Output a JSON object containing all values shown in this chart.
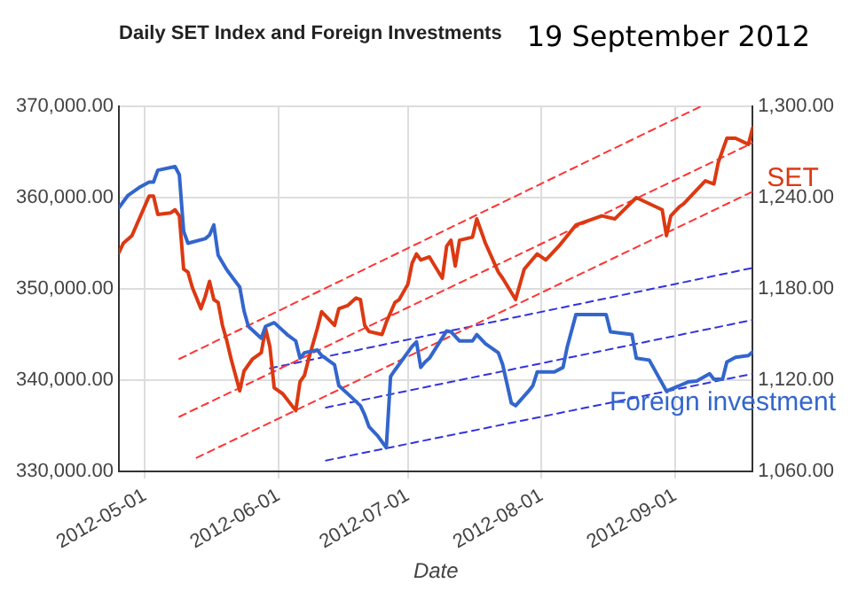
{
  "chart_data": {
    "type": "line",
    "title": "Daily SET Index and Foreign Investments",
    "annotations": [
      "19 September 2012"
    ],
    "xlabel": "Date",
    "xlim": [
      "2012-04-25",
      "2012-09-19"
    ],
    "xticks": [
      {
        "value": "2012-05-01",
        "label": "2012-05-01"
      },
      {
        "value": "2012-06-01",
        "label": "2012-06-01"
      },
      {
        "value": "2012-07-01",
        "label": "2012-07-01"
      },
      {
        "value": "2012-08-01",
        "label": "2012-08-01"
      },
      {
        "value": "2012-09-01",
        "label": "2012-09-01"
      }
    ],
    "ylim": [
      330000,
      370000
    ],
    "yticks": [
      {
        "value": 330000,
        "label": "330,000.00"
      },
      {
        "value": 340000,
        "label": "340,000.00"
      },
      {
        "value": 350000,
        "label": "350,000.00"
      },
      {
        "value": 360000,
        "label": "360,000.00"
      },
      {
        "value": 370000,
        "label": "370,000.00"
      }
    ],
    "y2lim": [
      1060,
      1300
    ],
    "y2ticks": [
      {
        "value": 1060,
        "label": "1,060.00"
      },
      {
        "value": 1120,
        "label": "1,120.00"
      },
      {
        "value": 1180,
        "label": "1,180.00"
      },
      {
        "value": 1240,
        "label": "1,240.00"
      },
      {
        "value": 1300,
        "label": "1,300.00"
      }
    ],
    "grid": true,
    "legend": false,
    "marker": "none",
    "series": [
      {
        "name": "Foreign investment",
        "color": "#3366cc",
        "line_style": "solid",
        "x": [
          "2012-04-25",
          "2012-04-27",
          "2012-04-30",
          "2012-05-02",
          "2012-05-03",
          "2012-05-04",
          "2012-05-08",
          "2012-05-09",
          "2012-05-10",
          "2012-05-11",
          "2012-05-15",
          "2012-05-16",
          "2012-05-17",
          "2012-05-18",
          "2012-05-20",
          "2012-05-23",
          "2012-05-24",
          "2012-05-25",
          "2012-05-28",
          "2012-05-29",
          "2012-05-31",
          "2012-06-03",
          "2012-06-05",
          "2012-06-06",
          "2012-06-07",
          "2012-06-10",
          "2012-06-11",
          "2012-06-14",
          "2012-06-15",
          "2012-06-18",
          "2012-06-20",
          "2012-06-21",
          "2012-06-22",
          "2012-06-24",
          "2012-06-26",
          "2012-06-27",
          "2012-06-28",
          "2012-07-02",
          "2012-07-03",
          "2012-07-04",
          "2012-07-05",
          "2012-07-06",
          "2012-07-10",
          "2012-07-11",
          "2012-07-13",
          "2012-07-16",
          "2012-07-17",
          "2012-07-19",
          "2012-07-22",
          "2012-07-23",
          "2012-07-25",
          "2012-07-26",
          "2012-07-29",
          "2012-07-30",
          "2012-07-31",
          "2012-08-04",
          "2012-08-06",
          "2012-08-07",
          "2012-08-09",
          "2012-08-16",
          "2012-08-17",
          "2012-08-22",
          "2012-08-23",
          "2012-08-26",
          "2012-08-30",
          "2012-09-02",
          "2012-09-04",
          "2012-09-06",
          "2012-09-09",
          "2012-09-10",
          "2012-09-12",
          "2012-09-13",
          "2012-09-15",
          "2012-09-18",
          "2012-09-19"
        ],
        "values": [
          358900,
          360200,
          361200,
          361700,
          361700,
          363000,
          363400,
          362500,
          356300,
          355000,
          355500,
          355900,
          357000,
          353700,
          352100,
          350200,
          347600,
          345900,
          344600,
          345900,
          346300,
          345000,
          344300,
          342400,
          343000,
          343300,
          342700,
          341700,
          339400,
          338100,
          337200,
          336200,
          334900,
          333900,
          332600,
          340400,
          341100,
          343700,
          344200,
          341400,
          342000,
          342400,
          345400,
          345300,
          344300,
          344300,
          345000,
          344000,
          343000,
          341700,
          337500,
          337200,
          338800,
          339400,
          340900,
          340900,
          341400,
          343700,
          347200,
          347200,
          345300,
          345000,
          342400,
          342200,
          338800,
          339400,
          339800,
          339900,
          340700,
          340100,
          340100,
          342000,
          342500,
          342700,
          343100
        ]
      },
      {
        "name": "SET",
        "color": "#dc3912",
        "axis": "y2",
        "line_style": "solid",
        "x": [
          "2012-04-25",
          "2012-04-26",
          "2012-04-28",
          "2012-04-30",
          "2012-05-02",
          "2012-05-03",
          "2012-05-04",
          "2012-05-07",
          "2012-05-08",
          "2012-05-09",
          "2012-05-10",
          "2012-05-11",
          "2012-05-12",
          "2012-05-14",
          "2012-05-15",
          "2012-05-16",
          "2012-05-17",
          "2012-05-18",
          "2012-05-19",
          "2012-05-20",
          "2012-05-21",
          "2012-05-23",
          "2012-05-24",
          "2012-05-26",
          "2012-05-28",
          "2012-05-29",
          "2012-05-30",
          "2012-05-31",
          "2012-06-02",
          "2012-06-05",
          "2012-06-06",
          "2012-06-07",
          "2012-06-08",
          "2012-06-10",
          "2012-06-11",
          "2012-06-12",
          "2012-06-14",
          "2012-06-15",
          "2012-06-17",
          "2012-06-19",
          "2012-06-20",
          "2012-06-21",
          "2012-06-22",
          "2012-06-25",
          "2012-06-26",
          "2012-06-28",
          "2012-06-29",
          "2012-07-01",
          "2012-07-02",
          "2012-07-03",
          "2012-07-04",
          "2012-07-06",
          "2012-07-09",
          "2012-07-10",
          "2012-07-11",
          "2012-07-12",
          "2012-07-13",
          "2012-07-16",
          "2012-07-17",
          "2012-07-19",
          "2012-07-22",
          "2012-07-23",
          "2012-07-26",
          "2012-07-28",
          "2012-07-31",
          "2012-08-02",
          "2012-08-05",
          "2012-08-09",
          "2012-08-15",
          "2012-08-18",
          "2012-08-23",
          "2012-08-29",
          "2012-08-30",
          "2012-08-31",
          "2012-09-02",
          "2012-09-03",
          "2012-09-06",
          "2012-09-08",
          "2012-09-10",
          "2012-09-11",
          "2012-09-13",
          "2012-09-15",
          "2012-09-18",
          "2012-09-19"
        ],
        "values": [
          1204,
          1210,
          1215,
          1228,
          1241,
          1241,
          1229,
          1230,
          1232,
          1228,
          1193,
          1191,
          1181,
          1167,
          1175,
          1185,
          1173,
          1171,
          1156,
          1146,
          1134,
          1113,
          1126,
          1134,
          1138,
          1154,
          1142,
          1115,
          1111,
          1100,
          1119,
          1123,
          1134,
          1154,
          1165,
          1162,
          1156,
          1167,
          1169,
          1174,
          1173,
          1156,
          1152,
          1150,
          1158,
          1171,
          1173,
          1183,
          1197,
          1203,
          1199,
          1201,
          1187,
          1208,
          1212,
          1195,
          1212,
          1214,
          1226,
          1210,
          1191,
          1187,
          1173,
          1193,
          1203,
          1199,
          1208,
          1222,
          1228,
          1226,
          1240,
          1232,
          1215,
          1228,
          1234,
          1236,
          1245,
          1251,
          1249,
          1263,
          1279,
          1279,
          1275,
          1286
        ]
      },
      {
        "color": "#ff3333",
        "axis": "y2",
        "line_style": "dashed",
        "x": [
          "2012-05-09",
          "2012-09-07"
        ],
        "values": [
          1134,
          1300
        ]
      },
      {
        "color": "#ff3333",
        "axis": "y2",
        "line_style": "dashed",
        "x": [
          "2012-05-09",
          "2012-09-19"
        ],
        "values": [
          1096,
          1276
        ]
      },
      {
        "color": "#ff3333",
        "axis": "y2",
        "line_style": "dashed",
        "x": [
          "2012-05-13",
          "2012-09-19"
        ],
        "values": [
          1069,
          1244
        ]
      },
      {
        "color": "#3333dd",
        "line_style": "dashed",
        "x": [
          "2012-05-30",
          "2012-09-19"
        ],
        "values": [
          341300,
          352300
        ]
      },
      {
        "color": "#3333dd",
        "line_style": "dashed",
        "x": [
          "2012-06-12",
          "2012-09-19"
        ],
        "values": [
          337000,
          346600
        ]
      },
      {
        "color": "#3333dd",
        "line_style": "dashed",
        "x": [
          "2012-06-12",
          "2012-09-19"
        ],
        "values": [
          331200,
          340700
        ]
      }
    ]
  }
}
